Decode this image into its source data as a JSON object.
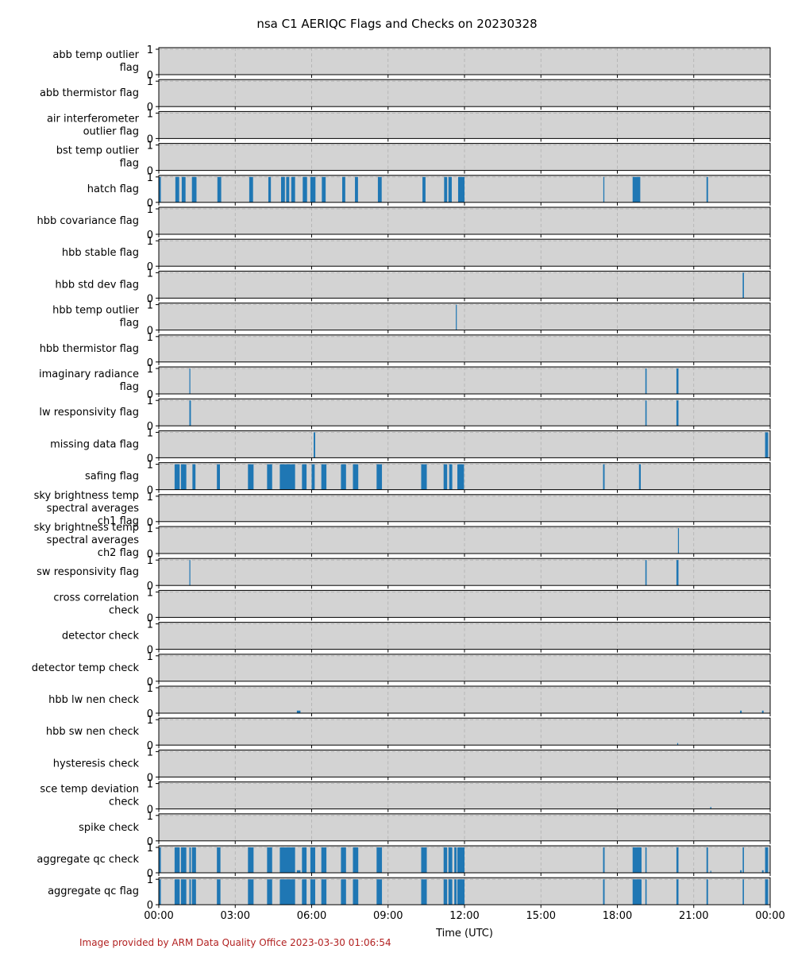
{
  "title": "nsa C1 AERIQC Flags and Checks on 20230328",
  "credit": "Image provided by ARM Data Quality Office 2023-03-30 01:06:54",
  "chart_data": {
    "type": "bar",
    "title": "nsa C1 AERIQC Flags and Checks on 20230328",
    "xlabel": "Time (UTC)",
    "ylabel": "",
    "xlim_hours": [
      0,
      24
    ],
    "ylim": [
      0,
      1
    ],
    "grid": true,
    "x_ticks": [
      "00:00",
      "03:00",
      "06:00",
      "09:00",
      "12:00",
      "15:00",
      "18:00",
      "21:00",
      "00:00"
    ],
    "y_ticks": [
      "0",
      "1"
    ],
    "bar_color": "#1f77b4",
    "panel_background": "#d3d3d3",
    "series": [
      {
        "name": "abb temp outlier flag",
        "label_lines": [
          "abb temp outlier",
          "flag"
        ],
        "events": []
      },
      {
        "name": "abb thermistor flag",
        "label_lines": [
          "abb thermistor flag"
        ],
        "events": []
      },
      {
        "name": "air interferometer outlier flag",
        "label_lines": [
          "air interferometer",
          "outlier flag"
        ],
        "events": []
      },
      {
        "name": "bst temp outlier flag",
        "label_lines": [
          "bst temp outlier",
          "flag"
        ],
        "events": []
      },
      {
        "name": "hatch flag",
        "label_lines": [
          "hatch flag"
        ],
        "events": [
          {
            "start": 0.0,
            "end": 0.08,
            "value": 1
          },
          {
            "start": 0.65,
            "end": 0.8,
            "value": 1
          },
          {
            "start": 0.9,
            "end": 1.05,
            "value": 1
          },
          {
            "start": 1.3,
            "end": 1.48,
            "value": 1
          },
          {
            "start": 2.3,
            "end": 2.45,
            "value": 1
          },
          {
            "start": 3.55,
            "end": 3.7,
            "value": 1
          },
          {
            "start": 4.3,
            "end": 4.4,
            "value": 1
          },
          {
            "start": 4.8,
            "end": 4.95,
            "value": 1
          },
          {
            "start": 5.0,
            "end": 5.12,
            "value": 1
          },
          {
            "start": 5.2,
            "end": 5.35,
            "value": 1
          },
          {
            "start": 5.65,
            "end": 5.82,
            "value": 1
          },
          {
            "start": 5.95,
            "end": 6.15,
            "value": 1
          },
          {
            "start": 6.4,
            "end": 6.55,
            "value": 1
          },
          {
            "start": 7.2,
            "end": 7.32,
            "value": 1
          },
          {
            "start": 7.7,
            "end": 7.82,
            "value": 1
          },
          {
            "start": 8.6,
            "end": 8.75,
            "value": 1
          },
          {
            "start": 10.35,
            "end": 10.47,
            "value": 1
          },
          {
            "start": 11.2,
            "end": 11.32,
            "value": 1
          },
          {
            "start": 11.37,
            "end": 11.5,
            "value": 1
          },
          {
            "start": 11.75,
            "end": 12.0,
            "value": 1
          },
          {
            "start": 17.45,
            "end": 17.49,
            "value": 1
          },
          {
            "start": 18.6,
            "end": 18.9,
            "value": 1
          },
          {
            "start": 21.5,
            "end": 21.56,
            "value": 1
          }
        ]
      },
      {
        "name": "hbb covariance flag",
        "label_lines": [
          "hbb covariance flag"
        ],
        "events": []
      },
      {
        "name": "hbb stable flag",
        "label_lines": [
          "hbb stable flag"
        ],
        "events": []
      },
      {
        "name": "hbb std dev flag",
        "label_lines": [
          "hbb std dev flag"
        ],
        "events": [
          {
            "start": 22.92,
            "end": 22.97,
            "value": 1
          }
        ]
      },
      {
        "name": "hbb temp outlier flag",
        "label_lines": [
          "hbb temp outlier",
          "flag"
        ],
        "events": [
          {
            "start": 11.66,
            "end": 11.69,
            "value": 1
          }
        ]
      },
      {
        "name": "hbb thermistor flag",
        "label_lines": [
          "hbb thermistor flag"
        ],
        "events": []
      },
      {
        "name": "imaginary radiance flag",
        "label_lines": [
          "imaginary radiance",
          "flag"
        ],
        "events": [
          {
            "start": 1.2,
            "end": 1.23,
            "value": 1
          },
          {
            "start": 19.1,
            "end": 19.15,
            "value": 1
          },
          {
            "start": 20.32,
            "end": 20.4,
            "value": 1
          }
        ]
      },
      {
        "name": "lw responsivity flag",
        "label_lines": [
          "lw responsivity flag"
        ],
        "events": [
          {
            "start": 1.2,
            "end": 1.26,
            "value": 1
          },
          {
            "start": 19.1,
            "end": 19.15,
            "value": 1
          },
          {
            "start": 20.32,
            "end": 20.4,
            "value": 1
          }
        ]
      },
      {
        "name": "missing data flag",
        "label_lines": [
          "missing data flag"
        ],
        "events": [
          {
            "start": 6.08,
            "end": 6.14,
            "value": 1
          },
          {
            "start": 23.8,
            "end": 23.92,
            "value": 1
          }
        ]
      },
      {
        "name": "safing flag",
        "label_lines": [
          "safing flag"
        ],
        "events": [
          {
            "start": 0.62,
            "end": 0.82,
            "value": 1
          },
          {
            "start": 0.87,
            "end": 1.08,
            "value": 1
          },
          {
            "start": 1.32,
            "end": 1.44,
            "value": 1
          },
          {
            "start": 2.28,
            "end": 2.4,
            "value": 1
          },
          {
            "start": 3.5,
            "end": 3.72,
            "value": 1
          },
          {
            "start": 4.25,
            "end": 4.45,
            "value": 1
          },
          {
            "start": 4.75,
            "end": 5.35,
            "value": 1
          },
          {
            "start": 5.62,
            "end": 5.8,
            "value": 1
          },
          {
            "start": 6.0,
            "end": 6.12,
            "value": 1
          },
          {
            "start": 6.38,
            "end": 6.58,
            "value": 1
          },
          {
            "start": 7.15,
            "end": 7.35,
            "value": 1
          },
          {
            "start": 7.62,
            "end": 7.83,
            "value": 1
          },
          {
            "start": 8.55,
            "end": 8.76,
            "value": 1
          },
          {
            "start": 10.3,
            "end": 10.52,
            "value": 1
          },
          {
            "start": 11.18,
            "end": 11.32,
            "value": 1
          },
          {
            "start": 11.4,
            "end": 11.52,
            "value": 1
          },
          {
            "start": 11.72,
            "end": 11.98,
            "value": 1
          },
          {
            "start": 17.44,
            "end": 17.5,
            "value": 1
          },
          {
            "start": 18.85,
            "end": 18.92,
            "value": 1
          }
        ]
      },
      {
        "name": "sky brightness temp spectral averages ch1 flag",
        "label_lines": [
          "sky brightness temp",
          "spectral averages",
          "ch1 flag"
        ],
        "events": []
      },
      {
        "name": "sky brightness temp spectral averages ch2 flag",
        "label_lines": [
          "sky brightness temp",
          "spectral averages",
          "ch2 flag"
        ],
        "events": [
          {
            "start": 20.38,
            "end": 20.41,
            "value": 1
          }
        ]
      },
      {
        "name": "sw responsivity flag",
        "label_lines": [
          "sw responsivity flag"
        ],
        "events": [
          {
            "start": 1.2,
            "end": 1.23,
            "value": 1
          },
          {
            "start": 19.1,
            "end": 19.15,
            "value": 1
          },
          {
            "start": 20.32,
            "end": 20.4,
            "value": 1
          }
        ]
      },
      {
        "name": "cross correlation check",
        "label_lines": [
          "cross correlation",
          "check"
        ],
        "events": []
      },
      {
        "name": "detector check",
        "label_lines": [
          "detector check"
        ],
        "events": []
      },
      {
        "name": "detector temp check",
        "label_lines": [
          "detector temp check"
        ],
        "events": []
      },
      {
        "name": "hbb lw nen check",
        "label_lines": [
          "hbb lw nen check"
        ],
        "events": [
          {
            "start": 5.42,
            "end": 5.56,
            "value": 0.1
          },
          {
            "start": 22.82,
            "end": 22.88,
            "value": 0.1
          },
          {
            "start": 23.68,
            "end": 23.74,
            "value": 0.1
          }
        ]
      },
      {
        "name": "hbb sw nen check",
        "label_lines": [
          "hbb sw nen check"
        ],
        "events": [
          {
            "start": 20.35,
            "end": 20.37,
            "value": 0.08
          }
        ]
      },
      {
        "name": "hysteresis check",
        "label_lines": [
          "hysteresis check"
        ],
        "events": []
      },
      {
        "name": "sce temp deviation check",
        "label_lines": [
          "sce temp deviation",
          "check"
        ],
        "events": [
          {
            "start": 21.65,
            "end": 21.67,
            "value": 0.08
          }
        ]
      },
      {
        "name": "spike check",
        "label_lines": [
          "spike check"
        ],
        "events": []
      },
      {
        "name": "aggregate qc check",
        "label_lines": [
          "aggregate qc check"
        ],
        "events": [
          {
            "start": 0.0,
            "end": 0.08,
            "value": 1
          },
          {
            "start": 0.62,
            "end": 0.82,
            "value": 1
          },
          {
            "start": 0.87,
            "end": 1.08,
            "value": 1
          },
          {
            "start": 1.2,
            "end": 1.26,
            "value": 1
          },
          {
            "start": 1.3,
            "end": 1.46,
            "value": 1
          },
          {
            "start": 2.28,
            "end": 2.42,
            "value": 1
          },
          {
            "start": 3.5,
            "end": 3.72,
            "value": 1
          },
          {
            "start": 4.25,
            "end": 4.45,
            "value": 1
          },
          {
            "start": 4.75,
            "end": 5.35,
            "value": 1
          },
          {
            "start": 5.42,
            "end": 5.56,
            "value": 0.1
          },
          {
            "start": 5.62,
            "end": 5.8,
            "value": 1
          },
          {
            "start": 5.95,
            "end": 6.14,
            "value": 1
          },
          {
            "start": 6.38,
            "end": 6.58,
            "value": 1
          },
          {
            "start": 7.15,
            "end": 7.35,
            "value": 1
          },
          {
            "start": 7.62,
            "end": 7.83,
            "value": 1
          },
          {
            "start": 8.55,
            "end": 8.76,
            "value": 1
          },
          {
            "start": 10.3,
            "end": 10.52,
            "value": 1
          },
          {
            "start": 11.18,
            "end": 11.32,
            "value": 1
          },
          {
            "start": 11.37,
            "end": 11.52,
            "value": 1
          },
          {
            "start": 11.6,
            "end": 11.69,
            "value": 1
          },
          {
            "start": 11.72,
            "end": 12.0,
            "value": 1
          },
          {
            "start": 17.44,
            "end": 17.5,
            "value": 1
          },
          {
            "start": 18.6,
            "end": 18.95,
            "value": 1
          },
          {
            "start": 19.1,
            "end": 19.15,
            "value": 1
          },
          {
            "start": 20.32,
            "end": 20.4,
            "value": 1
          },
          {
            "start": 21.5,
            "end": 21.56,
            "value": 1
          },
          {
            "start": 21.65,
            "end": 21.67,
            "value": 0.08
          },
          {
            "start": 22.82,
            "end": 22.88,
            "value": 0.1
          },
          {
            "start": 22.92,
            "end": 22.97,
            "value": 1
          },
          {
            "start": 23.68,
            "end": 23.74,
            "value": 0.1
          },
          {
            "start": 23.8,
            "end": 23.92,
            "value": 1
          }
        ]
      },
      {
        "name": "aggregate qc flag",
        "label_lines": [
          "aggregate qc flag"
        ],
        "events": [
          {
            "start": 0.0,
            "end": 0.08,
            "value": 1
          },
          {
            "start": 0.62,
            "end": 0.82,
            "value": 1
          },
          {
            "start": 0.87,
            "end": 1.08,
            "value": 1
          },
          {
            "start": 1.2,
            "end": 1.26,
            "value": 1
          },
          {
            "start": 1.3,
            "end": 1.46,
            "value": 1
          },
          {
            "start": 2.28,
            "end": 2.42,
            "value": 1
          },
          {
            "start": 3.5,
            "end": 3.72,
            "value": 1
          },
          {
            "start": 4.25,
            "end": 4.45,
            "value": 1
          },
          {
            "start": 4.75,
            "end": 5.35,
            "value": 1
          },
          {
            "start": 5.62,
            "end": 5.8,
            "value": 1
          },
          {
            "start": 5.95,
            "end": 6.14,
            "value": 1
          },
          {
            "start": 6.38,
            "end": 6.58,
            "value": 1
          },
          {
            "start": 7.15,
            "end": 7.35,
            "value": 1
          },
          {
            "start": 7.62,
            "end": 7.83,
            "value": 1
          },
          {
            "start": 8.55,
            "end": 8.76,
            "value": 1
          },
          {
            "start": 10.3,
            "end": 10.52,
            "value": 1
          },
          {
            "start": 11.18,
            "end": 11.32,
            "value": 1
          },
          {
            "start": 11.37,
            "end": 11.52,
            "value": 1
          },
          {
            "start": 11.6,
            "end": 11.69,
            "value": 1
          },
          {
            "start": 11.72,
            "end": 12.0,
            "value": 1
          },
          {
            "start": 17.44,
            "end": 17.5,
            "value": 1
          },
          {
            "start": 18.6,
            "end": 18.95,
            "value": 1
          },
          {
            "start": 19.1,
            "end": 19.15,
            "value": 1
          },
          {
            "start": 20.32,
            "end": 20.4,
            "value": 1
          },
          {
            "start": 21.5,
            "end": 21.56,
            "value": 1
          },
          {
            "start": 22.92,
            "end": 22.97,
            "value": 1
          },
          {
            "start": 23.8,
            "end": 23.92,
            "value": 1
          }
        ]
      }
    ]
  }
}
